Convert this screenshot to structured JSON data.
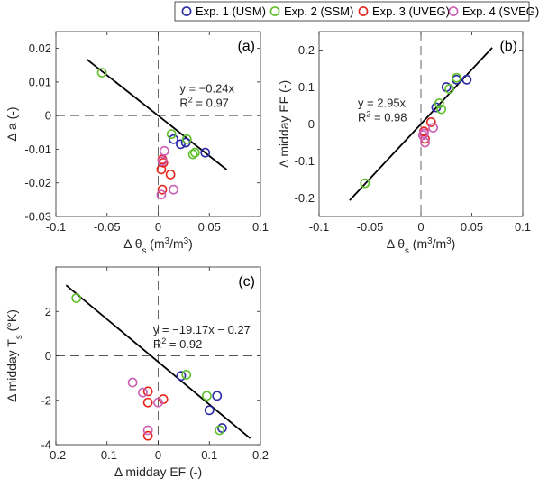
{
  "legend": {
    "placement": "top",
    "entries": [
      {
        "label": "Exp. 1 (USM)",
        "color": "#2a2aa6"
      },
      {
        "label": "Exp. 2 (SSM)",
        "color": "#5fbf2a"
      },
      {
        "label": "Exp. 3 (UVEG)",
        "color": "#e4261c"
      },
      {
        "label": "Exp. 4 (SVEG)",
        "color": "#cc5fb4"
      }
    ]
  },
  "chart_data": [
    {
      "type": "scatter",
      "panel_label": "(a)",
      "xlabel_parts": [
        "Δ θ",
        "s",
        " (m",
        "3",
        "/m",
        "3",
        ")"
      ],
      "ylabel_parts": [
        "Δ a (-)"
      ],
      "xlim": [
        -0.1,
        0.1
      ],
      "ylim": [
        -0.03,
        0.025
      ],
      "xticks": [
        -0.1,
        -0.05,
        0,
        0.05,
        0.1
      ],
      "xtick_labels": [
        "-0.1",
        "-0.05",
        "0",
        "0.05",
        "0.1"
      ],
      "yticks": [
        -0.03,
        -0.02,
        -0.01,
        0,
        0.01,
        0.02
      ],
      "ytick_labels": [
        "-0.03",
        "-0.02",
        "-0.01",
        "0",
        "0.01",
        "0.02"
      ],
      "fit": {
        "slope": -0.24,
        "intercept": 0,
        "x_range": [
          -0.07,
          0.067
        ]
      },
      "equation_lines": [
        [
          "y = −0.24x"
        ],
        [
          "R",
          "2",
          " = 0.97"
        ]
      ],
      "equation_pos": [
        0.021,
        0.0069
      ],
      "series": [
        {
          "name": "Exp. 1 (USM)",
          "points": [
            [
              0.015,
              -0.007
            ],
            [
              0.022,
              -0.0085
            ],
            [
              0.027,
              -0.008
            ],
            [
              0.046,
              -0.011
            ]
          ]
        },
        {
          "name": "Exp. 2 (SSM)",
          "points": [
            [
              -0.055,
              0.0128
            ],
            [
              0.013,
              -0.0055
            ],
            [
              0.028,
              -0.007
            ],
            [
              0.034,
              -0.0115
            ],
            [
              0.036,
              -0.011
            ]
          ]
        },
        {
          "name": "Exp. 3 (UVEG)",
          "points": [
            [
              0.004,
              -0.013
            ],
            [
              0.005,
              -0.014
            ],
            [
              0.003,
              -0.016
            ],
            [
              0.012,
              -0.0175
            ],
            [
              0.004,
              -0.022
            ]
          ]
        },
        {
          "name": "Exp. 4 (SVEG)",
          "points": [
            [
              0.006,
              -0.0105
            ],
            [
              0.004,
              -0.0135
            ],
            [
              0.015,
              -0.022
            ],
            [
              0.003,
              -0.0235
            ]
          ]
        }
      ]
    },
    {
      "type": "scatter",
      "panel_label": "(b)",
      "xlabel_parts": [
        "Δ θ",
        "s",
        " (m",
        "3",
        "/m",
        "3",
        ")"
      ],
      "ylabel_parts": [
        "Δ midday EF (-)"
      ],
      "xlim": [
        -0.1,
        0.1
      ],
      "ylim": [
        -0.25,
        0.25
      ],
      "xticks": [
        -0.1,
        -0.05,
        0,
        0.05,
        0.1
      ],
      "xtick_labels": [
        "-0.1",
        "-0.05",
        "0",
        "0.05",
        "0.1"
      ],
      "yticks": [
        -0.2,
        -0.1,
        0,
        0.1,
        0.2
      ],
      "ytick_labels": [
        "-0.2",
        "-0.1",
        "0",
        "0.1",
        "0.2"
      ],
      "fit": {
        "slope": 2.95,
        "intercept": 0,
        "x_range": [
          -0.07,
          0.07
        ]
      },
      "equation_lines": [
        [
          "y = 2.95x"
        ],
        [
          "R",
          "2",
          " = 0.98"
        ]
      ],
      "equation_pos": [
        -0.062,
        0.046
      ],
      "series": [
        {
          "name": "Exp. 1 (USM)",
          "points": [
            [
              0.025,
              0.1
            ],
            [
              0.015,
              0.045
            ],
            [
              0.045,
              0.12
            ],
            [
              0.035,
              0.12
            ]
          ]
        },
        {
          "name": "Exp. 2 (SSM)",
          "points": [
            [
              -0.055,
              -0.16
            ],
            [
              0.028,
              0.095
            ],
            [
              0.035,
              0.125
            ],
            [
              0.018,
              0.056
            ],
            [
              0.02,
              0.04
            ]
          ]
        },
        {
          "name": "Exp. 3 (UVEG)",
          "points": [
            [
              0.01,
              0.005
            ],
            [
              0.003,
              -0.02
            ],
            [
              0.004,
              -0.04
            ]
          ]
        },
        {
          "name": "Exp. 4 (SVEG)",
          "points": [
            [
              0.002,
              -0.03
            ],
            [
              0.004,
              -0.05
            ],
            [
              0.012,
              -0.01
            ],
            [
              0.003,
              -0.025
            ]
          ]
        }
      ]
    },
    {
      "type": "scatter",
      "panel_label": "(c)",
      "xlabel_parts": [
        "Δ midday EF (-)"
      ],
      "ylabel_parts": [
        "Δ midday T",
        "s",
        " (°K)"
      ],
      "xlim": [
        -0.2,
        0.2
      ],
      "ylim": [
        -4,
        4
      ],
      "xticks": [
        -0.2,
        -0.1,
        0,
        0.1,
        0.2
      ],
      "xtick_labels": [
        "-0.2",
        "-0.1",
        "0",
        "0.1",
        "0.2"
      ],
      "yticks": [
        -4,
        -2,
        0,
        2
      ],
      "ytick_labels": [
        "-4",
        "-2",
        "0",
        "2"
      ],
      "fit": {
        "slope": -19.17,
        "intercept": -0.27,
        "x_range": [
          -0.18,
          0.18
        ]
      },
      "equation_lines": [
        [
          "y = −19.17x − 0.27"
        ],
        [
          "R",
          "2",
          " = 0.92"
        ]
      ],
      "equation_pos": [
        -0.01,
        1.0
      ],
      "series": [
        {
          "name": "Exp. 1 (USM)",
          "points": [
            [
              0.045,
              -0.9
            ],
            [
              0.1,
              -2.45
            ],
            [
              0.115,
              -1.8
            ],
            [
              0.125,
              -3.25
            ]
          ]
        },
        {
          "name": "Exp. 2 (SSM)",
          "points": [
            [
              -0.16,
              2.6
            ],
            [
              0.055,
              -0.85
            ],
            [
              0.095,
              -1.8
            ],
            [
              0.12,
              -3.35
            ]
          ]
        },
        {
          "name": "Exp. 3 (UVEG)",
          "points": [
            [
              -0.02,
              -1.6
            ],
            [
              -0.02,
              -2.1
            ],
            [
              0.01,
              -1.95
            ],
            [
              -0.02,
              -3.6
            ]
          ]
        },
        {
          "name": "Exp. 4 (SVEG)",
          "points": [
            [
              -0.05,
              -1.2
            ],
            [
              -0.03,
              -1.65
            ],
            [
              0.0,
              -2.1
            ],
            [
              -0.02,
              -3.35
            ]
          ]
        }
      ]
    }
  ]
}
